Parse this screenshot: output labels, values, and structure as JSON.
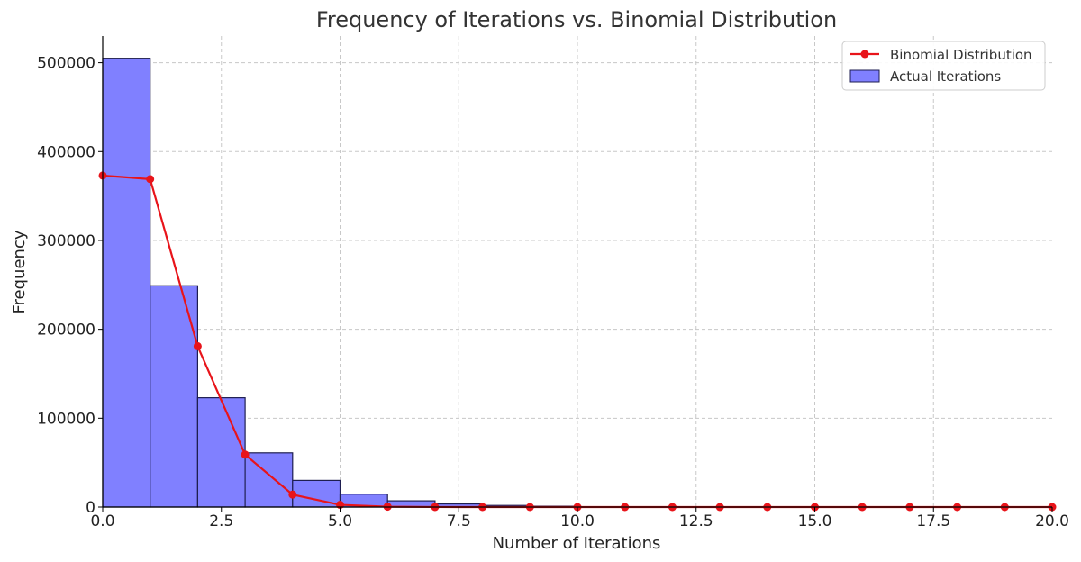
{
  "chart_data": {
    "type": "bar",
    "title": "Frequency of Iterations vs. Binomial Distribution",
    "xlabel": "Number of Iterations",
    "ylabel": "Frequency",
    "xlim": [
      0,
      20
    ],
    "ylim": [
      0,
      530000
    ],
    "xticks": [
      0,
      2.5,
      5,
      7.5,
      10,
      12.5,
      15,
      17.5,
      20
    ],
    "xtick_labels": [
      "0.0",
      "2.5",
      "5.0",
      "7.5",
      "10.0",
      "12.5",
      "15.0",
      "17.5",
      "20.0"
    ],
    "yticks": [
      0,
      100000,
      200000,
      300000,
      400000,
      500000
    ],
    "ytick_labels": [
      "0",
      "100000",
      "200000",
      "300000",
      "400000",
      "500000"
    ],
    "grid": true,
    "legend_position": "top-right",
    "series": [
      {
        "name": "Binomial Distribution",
        "kind": "line",
        "color": "#e8141a",
        "x": [
          0,
          1,
          2,
          3,
          4,
          5,
          6,
          7,
          8,
          9,
          10,
          11,
          12,
          13,
          14,
          15,
          16,
          17,
          18,
          19,
          20
        ],
        "values": [
          373000,
          369000,
          181000,
          59000,
          14000,
          2500,
          400,
          50,
          0,
          0,
          0,
          0,
          0,
          0,
          0,
          0,
          0,
          0,
          0,
          0,
          0
        ]
      },
      {
        "name": "Actual Iterations",
        "kind": "histogram",
        "color": "#8080ff",
        "edge_color": "#1e1e50",
        "bin_edges": [
          0,
          1,
          2,
          3,
          4,
          5,
          6,
          7,
          8,
          9,
          10
        ],
        "values": [
          505000,
          249000,
          123000,
          61000,
          30000,
          14500,
          7000,
          3500,
          1800,
          900
        ]
      }
    ]
  }
}
